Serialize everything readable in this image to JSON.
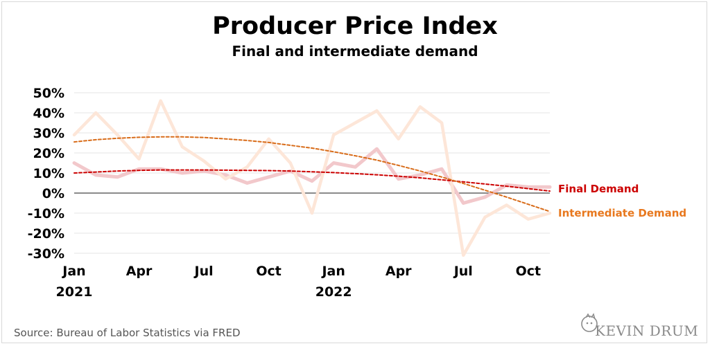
{
  "title": "Producer Price Index",
  "subtitle": "Final and intermediate demand",
  "source": "Source: Bureau of Labor Statistics via FRED",
  "brand": "KEVIN DRUM",
  "colors": {
    "final_trend": "#cc0000",
    "final_raw": "#f2c8cb",
    "intermediate_trend": "#d86b18",
    "intermediate_raw": "#fde6d8",
    "intermediate_label": "#e8781e"
  },
  "chart_data": {
    "type": "line",
    "x": [
      "2021-01",
      "2021-02",
      "2021-03",
      "2021-04",
      "2021-05",
      "2021-06",
      "2021-07",
      "2021-08",
      "2021-09",
      "2021-10",
      "2021-11",
      "2021-12",
      "2022-01",
      "2022-02",
      "2022-03",
      "2022-04",
      "2022-05",
      "2022-06",
      "2022-07",
      "2022-08",
      "2022-09",
      "2022-10",
      "2022-11"
    ],
    "x_tick_labels": [
      "Jan",
      "Apr",
      "Jul",
      "Oct",
      "Jan",
      "Apr",
      "Jul",
      "Oct"
    ],
    "x_tick_positions": [
      "2021-01",
      "2021-04",
      "2021-07",
      "2021-10",
      "2022-01",
      "2022-04",
      "2022-07",
      "2022-10"
    ],
    "year_labels": [
      {
        "label": "2021",
        "x": "2021-01"
      },
      {
        "label": "2022",
        "x": "2022-01"
      }
    ],
    "y_tick_labels": [
      "50%",
      "40%",
      "30%",
      "20%",
      "10%",
      "0%",
      "-10%",
      "-20%",
      "-30%"
    ],
    "y_ticks": [
      50,
      40,
      30,
      20,
      10,
      0,
      -10,
      -20,
      -30
    ],
    "ylim": [
      -30,
      50
    ],
    "grid": true,
    "series": [
      {
        "name": "Final Demand",
        "kind": "raw",
        "values": [
          15,
          9,
          8,
          12,
          12,
          10,
          11,
          9,
          5,
          8,
          11,
          6,
          15,
          13,
          22,
          7,
          9,
          12,
          -5,
          -2,
          4,
          3,
          3
        ]
      },
      {
        "name": "Intermediate Demand",
        "kind": "raw",
        "values": [
          29,
          40,
          29,
          17,
          46,
          23,
          16,
          7,
          13,
          27,
          15,
          -10,
          29,
          35,
          41,
          27,
          43,
          35,
          -31,
          -12,
          -6,
          -13,
          -10
        ]
      },
      {
        "name": "Final Demand",
        "kind": "trend",
        "values": [
          10,
          10.5,
          11,
          11.3,
          11.5,
          11.5,
          11.5,
          11.4,
          11.3,
          11.2,
          11,
          10.6,
          10.2,
          9.7,
          9.1,
          8.4,
          7.6,
          6.6,
          5.6,
          4.5,
          3.4,
          2.2,
          1
        ]
      },
      {
        "name": "Intermediate Demand",
        "kind": "trend",
        "values": [
          25.5,
          26.6,
          27.3,
          27.8,
          28,
          28,
          27.7,
          27,
          26.2,
          25.2,
          23.8,
          22.4,
          20.6,
          18.6,
          16.4,
          13.8,
          11,
          8,
          4.8,
          1.4,
          -2,
          -5.6,
          -9.2
        ]
      }
    ]
  }
}
